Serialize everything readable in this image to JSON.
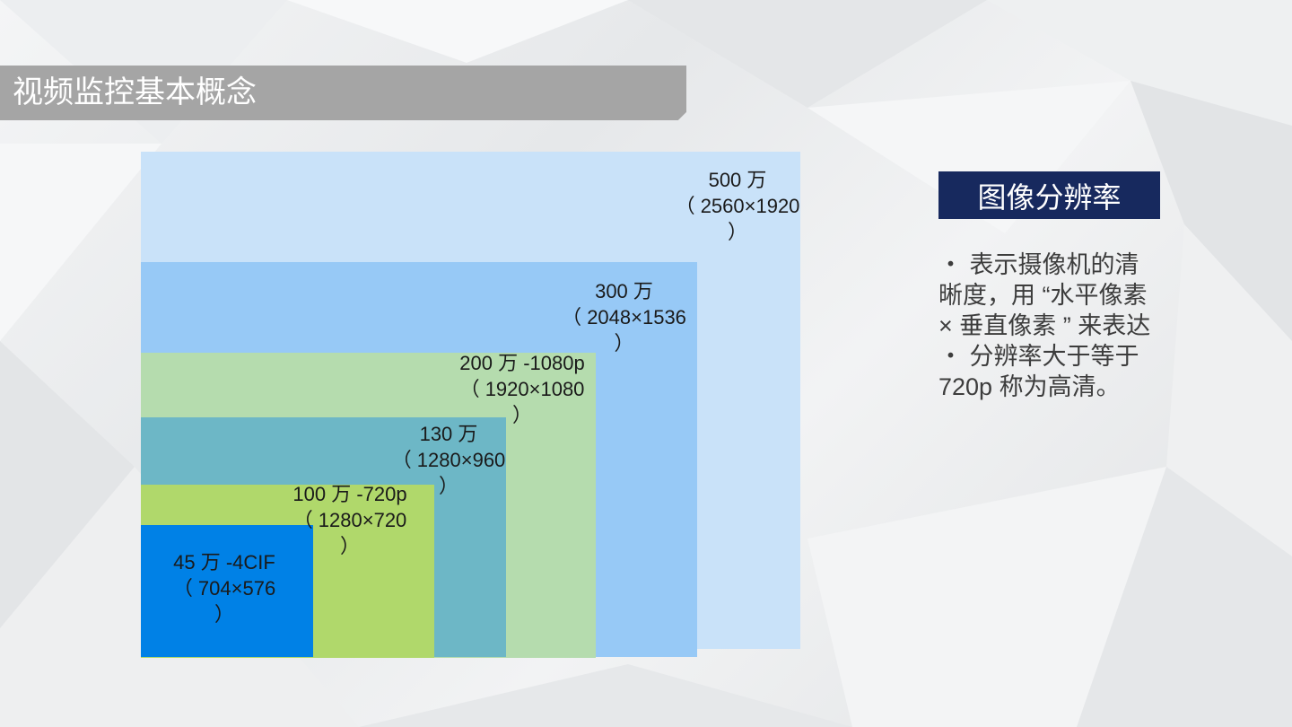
{
  "slide_title": "视频监控基本概念",
  "resolutions": [
    {
      "label": "500 万\n（ 2560×1920\n）",
      "color": "#c9e2f9"
    },
    {
      "label": "300 万\n（ 2048×1536\n）",
      "color": "#97c9f6"
    },
    {
      "label": "200 万 -1080p\n（ 1920×1080\n）",
      "color": "#b5dcae"
    },
    {
      "label": "130 万\n（ 1280×960\n）",
      "color": "#6db7c6"
    },
    {
      "label": "100 万 -720p\n（ 1280×720\n）",
      "color": "#b0d86b"
    },
    {
      "label": "45 万 -4CIF\n（ 704×576\n）",
      "color": "#0081e6"
    }
  ],
  "side_panel": {
    "header": "图像分辨率",
    "bullets": [
      "・ 表示摄像机的清晰度，用 “水平像素 × 垂直像素 ” 来表达",
      "・ 分辨率大于等于 720p 称为高清。"
    ]
  },
  "colors": {
    "title_bar": "#a5a5a5",
    "header_bg": "#17295e"
  }
}
